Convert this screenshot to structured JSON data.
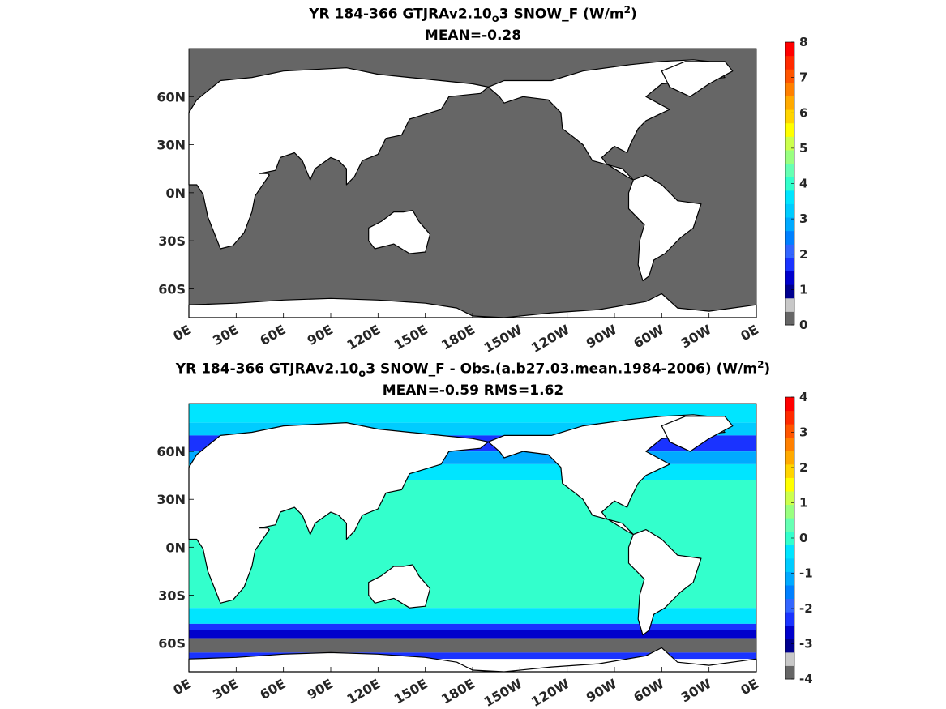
{
  "chart_data": [
    {
      "type": "heatmap",
      "title_parts": [
        "YR 184-366 GTJRAv2.10",
        "o",
        "3  SNOW_F (W/m",
        "2",
        ")"
      ],
      "subtitle": "MEAN=-0.28",
      "xticks": [
        "0E",
        "30E",
        "60E",
        "90E",
        "120E",
        "150E",
        "180E",
        "150W",
        "120W",
        "90W",
        "60W",
        "30W",
        "0E"
      ],
      "yticks": [
        "60N",
        "30N",
        "0N",
        "30S",
        "60S"
      ],
      "ylim": [
        -78,
        90
      ],
      "colorbar": {
        "min": 0,
        "max": 8,
        "tick_labels": [
          "0",
          "1",
          "2",
          "3",
          "4",
          "5",
          "6",
          "7",
          "8"
        ],
        "colors": [
          "#666666",
          "#c8c8c8",
          "#00008f",
          "#0000cc",
          "#1a33ff",
          "#3366ff",
          "#0080ff",
          "#00aaff",
          "#00ccff",
          "#00e5ff",
          "#33ffcc",
          "#66ffb3",
          "#99ff80",
          "#ccff4d",
          "#ffff00",
          "#ffd500",
          "#ffaa00",
          "#ff8000",
          "#ff5500",
          "#ff2a00",
          "#ff0000"
        ]
      },
      "ocean_value_band": "0 to 0.5",
      "ocean_color": "#666666"
    },
    {
      "type": "heatmap",
      "title_parts": [
        "YR 184-366 GTJRAv2.10",
        "o",
        "3 SNOW_F - Obs.(a.b27.03.mean.1984-2006) (W/m",
        "2",
        ")"
      ],
      "subtitle": "MEAN=-0.59 RMS=1.62",
      "xticks": [
        "0E",
        "30E",
        "60E",
        "90E",
        "120E",
        "150E",
        "180E",
        "150W",
        "120W",
        "90W",
        "60W",
        "30W",
        "0E"
      ],
      "yticks": [
        "60N",
        "30N",
        "0N",
        "30S",
        "60S"
      ],
      "ylim": [
        -78,
        90
      ],
      "colorbar": {
        "min": -4,
        "max": 4,
        "tick_labels": [
          "-4",
          "-3",
          "-2",
          "-1",
          "0",
          "1",
          "2",
          "3",
          "4"
        ],
        "colors": [
          "#666666",
          "#c8c8c8",
          "#00008f",
          "#0000cc",
          "#1a33ff",
          "#3366ff",
          "#0080ff",
          "#00aaff",
          "#00ccff",
          "#00e5ff",
          "#33ffcc",
          "#66ffb3",
          "#99ff80",
          "#ccff4d",
          "#ffff00",
          "#ffd500",
          "#ffaa00",
          "#ff8000",
          "#ff5500",
          "#ff2a00",
          "#ff0000"
        ]
      },
      "latitude_bands": [
        {
          "lat_from": 90,
          "lat_to": 78,
          "color": "#00e5ff"
        },
        {
          "lat_from": 78,
          "lat_to": 70,
          "color": "#00ccff"
        },
        {
          "lat_from": 70,
          "lat_to": 60,
          "color": "#1a33ff"
        },
        {
          "lat_from": 60,
          "lat_to": 52,
          "color": "#00aaff"
        },
        {
          "lat_from": 52,
          "lat_to": 42,
          "color": "#00e5ff"
        },
        {
          "lat_from": 42,
          "lat_to": -38,
          "color": "#33ffcc"
        },
        {
          "lat_from": -38,
          "lat_to": -48,
          "color": "#00e5ff"
        },
        {
          "lat_from": -48,
          "lat_to": -52,
          "color": "#1a33ff"
        },
        {
          "lat_from": -52,
          "lat_to": -57,
          "color": "#0000cc"
        },
        {
          "lat_from": -57,
          "lat_to": -66,
          "color": "#666666"
        },
        {
          "lat_from": -66,
          "lat_to": -70,
          "color": "#1a33ff"
        },
        {
          "lat_from": -70,
          "lat_to": -78,
          "color": "#ffffff"
        }
      ]
    }
  ]
}
